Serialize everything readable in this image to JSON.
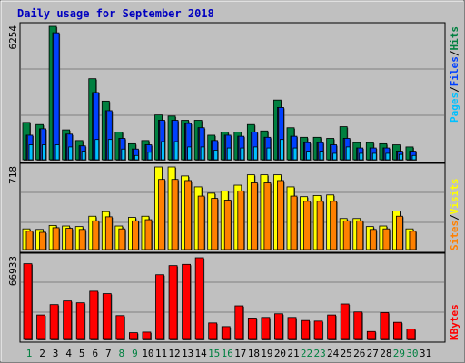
{
  "chart_data": [
    {
      "type": "bar",
      "title": "Daily usage for September 2018",
      "ylabel": "6254",
      "ymax": 6254,
      "legend": [
        "Pages",
        "/",
        "Files",
        "/",
        "Hits"
      ],
      "categories": [
        "1",
        "2",
        "3",
        "4",
        "5",
        "6",
        "7",
        "8",
        "9",
        "10",
        "11",
        "12",
        "13",
        "14",
        "15",
        "16",
        "17",
        "18",
        "19",
        "20",
        "21",
        "22",
        "23",
        "24",
        "25",
        "26",
        "27",
        "28",
        "29",
        "30",
        "31"
      ],
      "series": [
        {
          "name": "Hits",
          "values": [
            1750,
            1650,
            6254,
            1400,
            900,
            3800,
            2750,
            1300,
            750,
            900,
            2100,
            2050,
            1850,
            1850,
            1150,
            1300,
            1300,
            1650,
            1350,
            2800,
            1500,
            1050,
            1050,
            1000,
            1550,
            800,
            800,
            750,
            700,
            600,
            0
          ]
        },
        {
          "name": "Files",
          "values": [
            1150,
            1450,
            5950,
            1200,
            650,
            3150,
            2300,
            1000,
            500,
            700,
            1850,
            1850,
            1700,
            1500,
            900,
            1150,
            1100,
            1300,
            1050,
            2450,
            1100,
            800,
            800,
            700,
            1000,
            550,
            550,
            550,
            400,
            400,
            0
          ]
        },
        {
          "name": "Pages",
          "values": [
            700,
            700,
            700,
            600,
            400,
            950,
            950,
            500,
            200,
            350,
            850,
            850,
            600,
            600,
            450,
            550,
            550,
            600,
            550,
            950,
            550,
            400,
            400,
            300,
            600,
            300,
            300,
            300,
            250,
            200,
            0
          ]
        }
      ]
    },
    {
      "type": "bar",
      "ylabel": "718",
      "ymax": 718,
      "legend": [
        "Sites",
        "/",
        "Visits"
      ],
      "categories": [
        "1",
        "2",
        "3",
        "4",
        "5",
        "6",
        "7",
        "8",
        "9",
        "10",
        "11",
        "12",
        "13",
        "14",
        "15",
        "16",
        "17",
        "18",
        "19",
        "20",
        "21",
        "22",
        "23",
        "24",
        "25",
        "26",
        "27",
        "28",
        "29",
        "30",
        "31"
      ],
      "series": [
        {
          "name": "Visits",
          "values": [
            180,
            175,
            210,
            205,
            200,
            290,
            330,
            205,
            280,
            290,
            718,
            718,
            640,
            545,
            490,
            510,
            560,
            650,
            650,
            650,
            545,
            460,
            470,
            475,
            270,
            270,
            200,
            205,
            335,
            180,
            0
          ]
        },
        {
          "name": "Sites",
          "values": [
            160,
            150,
            190,
            185,
            175,
            250,
            285,
            180,
            250,
            260,
            610,
            610,
            600,
            465,
            445,
            430,
            510,
            580,
            580,
            600,
            465,
            420,
            420,
            420,
            250,
            250,
            175,
            180,
            290,
            160,
            0
          ]
        }
      ]
    },
    {
      "type": "bar",
      "ylabel": "66933",
      "ymax": 66933,
      "legend": [
        "KBytes"
      ],
      "categories": [
        "1",
        "2",
        "3",
        "4",
        "5",
        "6",
        "7",
        "8",
        "9",
        "10",
        "11",
        "12",
        "13",
        "14",
        "15",
        "16",
        "17",
        "18",
        "19",
        "20",
        "21",
        "22",
        "23",
        "24",
        "25",
        "26",
        "27",
        "28",
        "29",
        "30",
        "31"
      ],
      "series": [
        {
          "name": "KBytes",
          "values": [
            62000,
            20000,
            28500,
            31500,
            30000,
            39500,
            37500,
            19500,
            5500,
            6000,
            53000,
            60500,
            61500,
            66933,
            13500,
            10500,
            27500,
            17500,
            18000,
            21000,
            18000,
            15500,
            15000,
            20000,
            29000,
            22500,
            6500,
            22000,
            14000,
            8500,
            0
          ]
        }
      ]
    }
  ],
  "x_labels": {
    "days": [
      "1",
      "2",
      "3",
      "4",
      "5",
      "6",
      "7",
      "8",
      "9",
      "10",
      "11",
      "12",
      "13",
      "14",
      "15",
      "16",
      "17",
      "18",
      "19",
      "20",
      "21",
      "22",
      "23",
      "24",
      "25",
      "26",
      "27",
      "28",
      "29",
      "30",
      "31"
    ],
    "weekend_days": [
      1,
      8,
      9,
      15,
      16,
      22,
      23,
      29,
      30
    ]
  },
  "colors": {
    "background": "#c0c0c0",
    "title": "#0000c0",
    "hits": "#008040",
    "files": "#0040ff",
    "pages": "#00c0ff",
    "visits": "#ffff00",
    "sites": "#ff8000",
    "kbytes": "#ff0000",
    "weekend_label": "#008040",
    "weekday_label": "#000000",
    "gridline": "#808080"
  }
}
